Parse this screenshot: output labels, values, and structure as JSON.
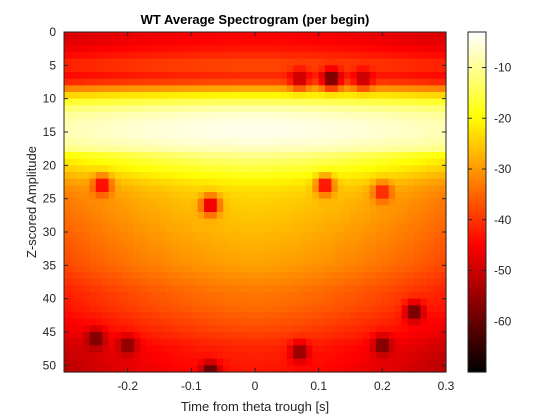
{
  "chart_data": {
    "type": "heatmap",
    "title": "WT Average Spectrogram (per begin)",
    "xlabel": "Time from theta trough [s]",
    "ylabel": "Z-scored Amplitude",
    "xlim": [
      -0.3,
      0.3
    ],
    "ylim": [
      0,
      51
    ],
    "y_reversed": true,
    "grid": false,
    "x_ticks": [
      -0.2,
      -0.1,
      0,
      0.1,
      0.2,
      0.3
    ],
    "x_tick_labels": [
      "-0.2",
      "-0.1",
      "0",
      "0.1",
      "0.2",
      "0.3"
    ],
    "y_ticks": [
      0,
      5,
      10,
      15,
      20,
      25,
      30,
      35,
      40,
      45,
      50
    ],
    "y_tick_labels": [
      "0",
      "5",
      "10",
      "15",
      "20",
      "25",
      "30",
      "35",
      "40",
      "45",
      "50"
    ],
    "colormap": "hot",
    "colorbar": {
      "range": [
        -70,
        -3
      ],
      "ticks": [
        -10,
        -20,
        -30,
        -40,
        -50,
        -60
      ],
      "tick_labels": [
        "-10",
        "-20",
        "-30",
        "-40",
        "-50",
        "-60"
      ]
    },
    "row_profile": [
      [
        1,
        -45
      ],
      [
        3,
        -42
      ],
      [
        5,
        -37
      ],
      [
        7,
        -42
      ],
      [
        9,
        -24
      ],
      [
        11,
        -10
      ],
      [
        13,
        -5
      ],
      [
        15,
        -4
      ],
      [
        17,
        -6
      ],
      [
        19,
        -12
      ],
      [
        21,
        -17
      ],
      [
        23,
        -22
      ],
      [
        25,
        -24
      ],
      [
        27,
        -25
      ],
      [
        29,
        -26
      ],
      [
        31,
        -27
      ],
      [
        33,
        -28
      ],
      [
        35,
        -29
      ],
      [
        37,
        -31
      ],
      [
        39,
        -33
      ],
      [
        41,
        -34
      ],
      [
        43,
        -36
      ],
      [
        45,
        -38
      ],
      [
        47,
        -41
      ],
      [
        49,
        -42
      ],
      [
        51,
        -43
      ]
    ],
    "hotspots": [
      {
        "x": 0.12,
        "y": 7,
        "value": -62
      },
      {
        "x": 0.07,
        "y": 7,
        "value": -52
      },
      {
        "x": 0.17,
        "y": 7,
        "value": -52
      },
      {
        "x": -0.24,
        "y": 23,
        "value": -48
      },
      {
        "x": 0.11,
        "y": 23,
        "value": -48
      },
      {
        "x": 0.2,
        "y": 24,
        "value": -44
      },
      {
        "x": -0.07,
        "y": 26,
        "value": -52
      },
      {
        "x": 0.25,
        "y": 42,
        "value": -62
      },
      {
        "x": -0.25,
        "y": 46,
        "value": -60
      },
      {
        "x": -0.2,
        "y": 47,
        "value": -58
      },
      {
        "x": 0.07,
        "y": 48,
        "value": -58
      },
      {
        "x": 0.2,
        "y": 47,
        "value": -60
      },
      {
        "x": -0.07,
        "y": 51,
        "value": -64
      }
    ]
  }
}
